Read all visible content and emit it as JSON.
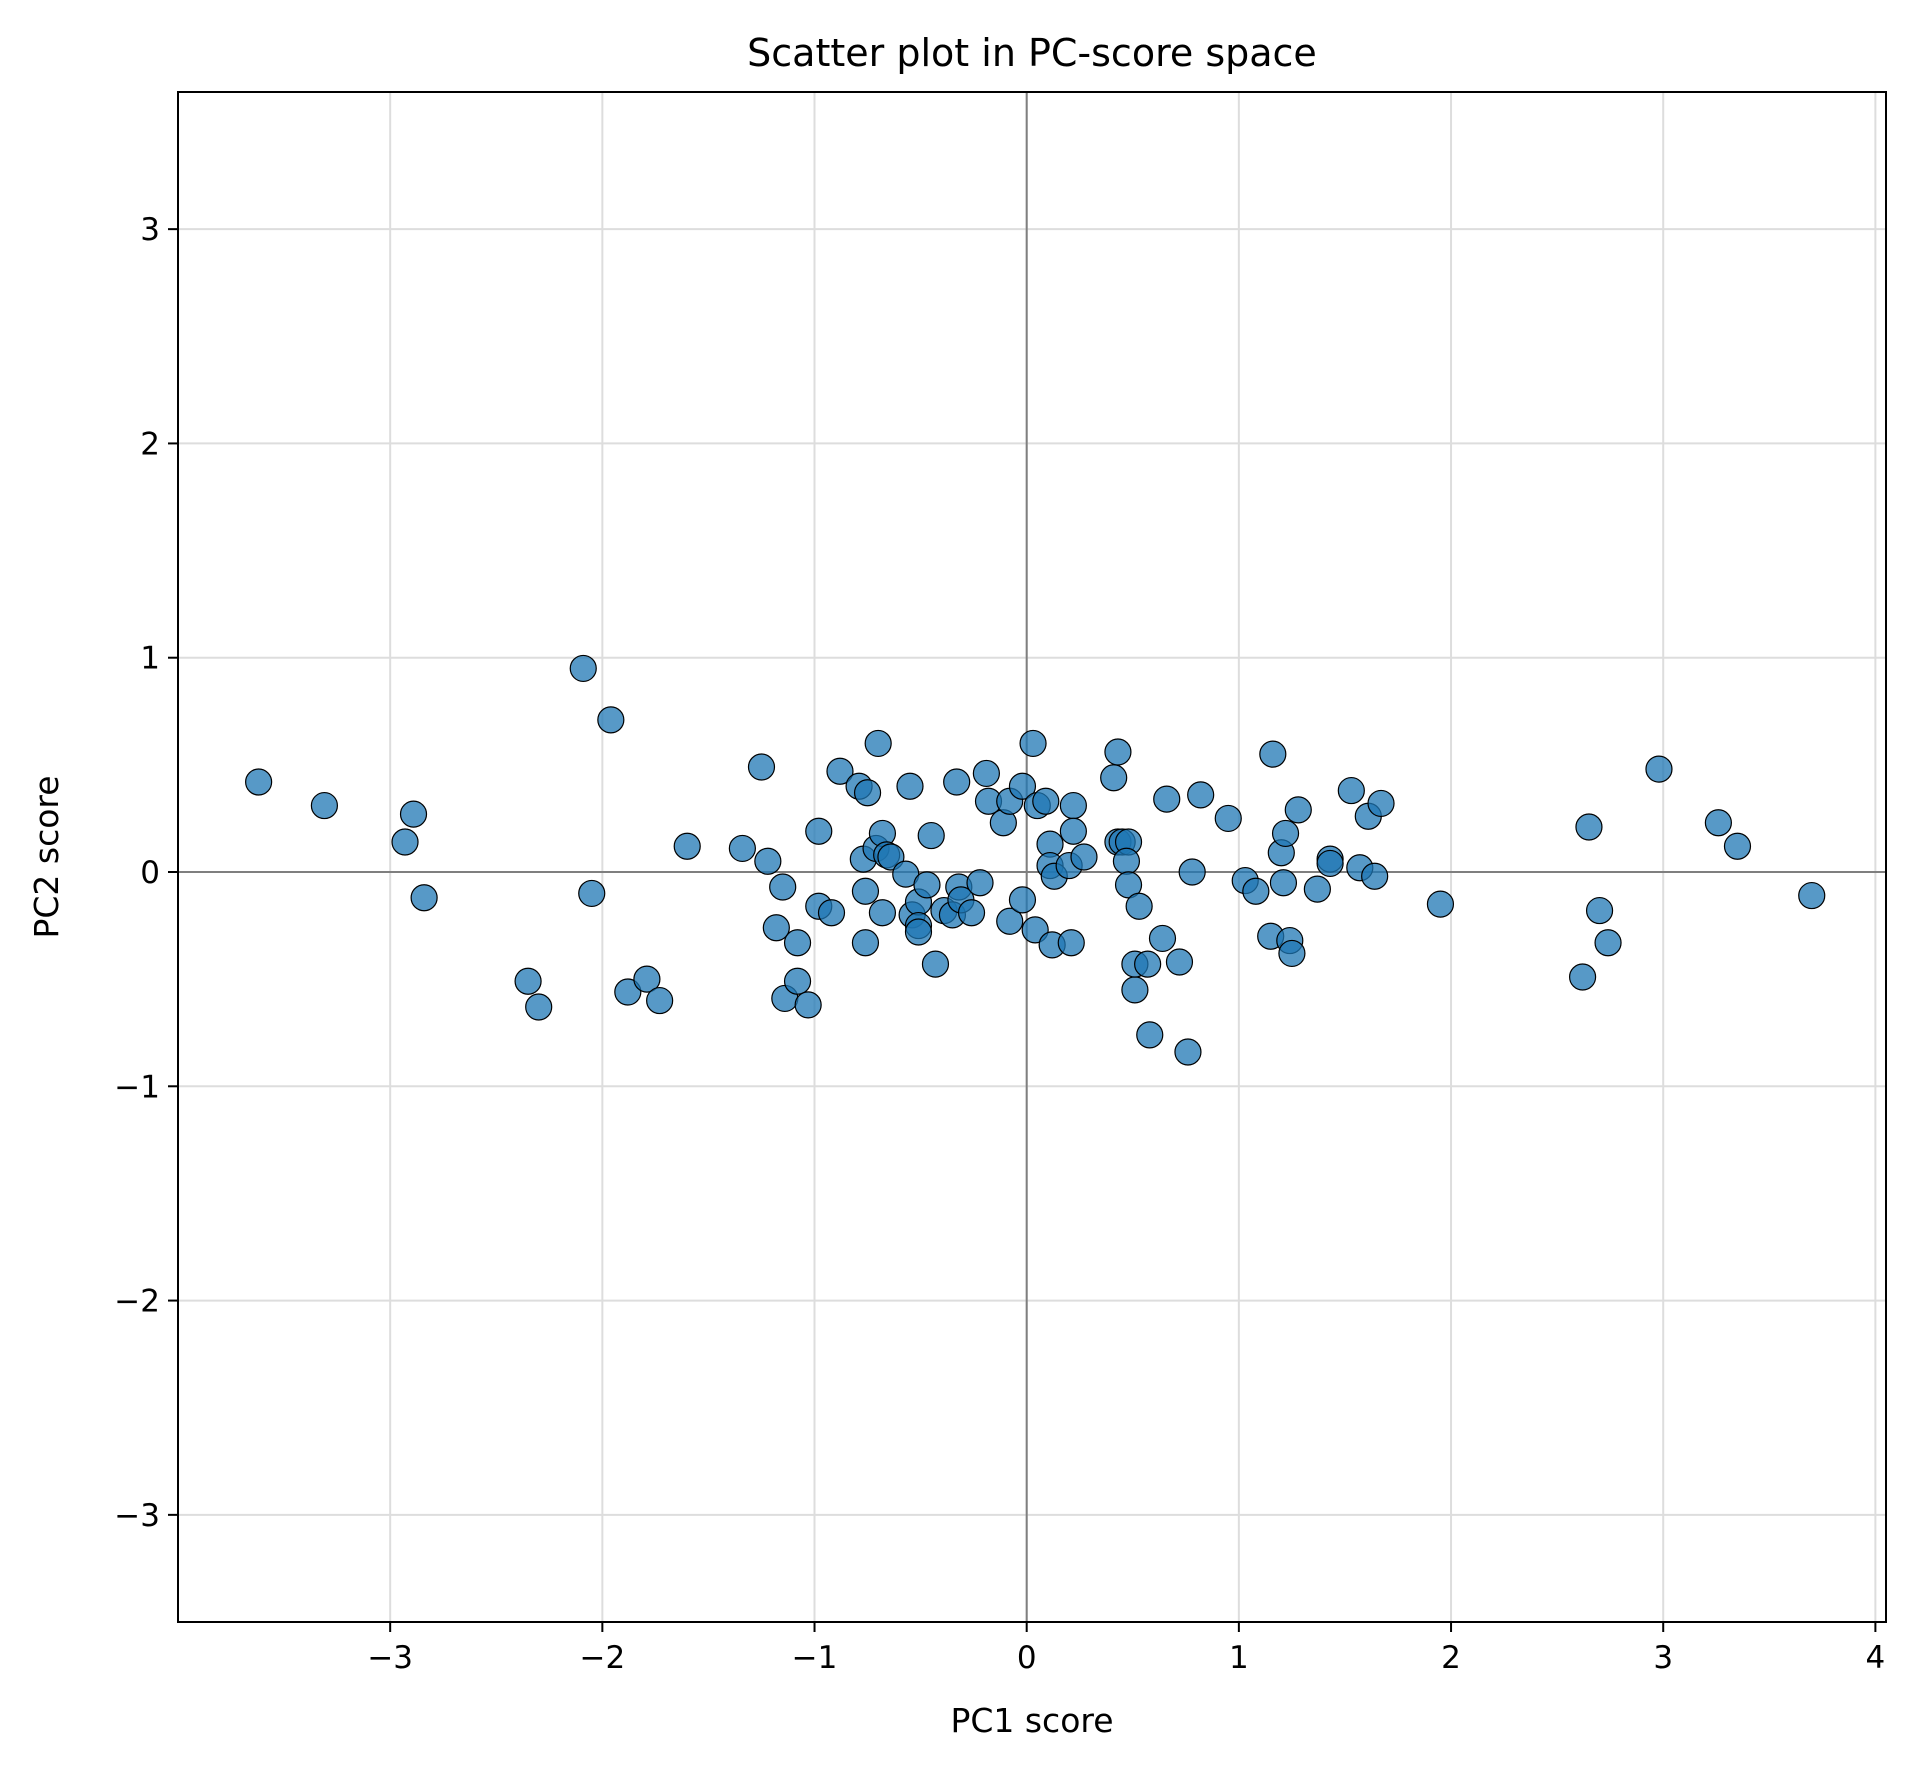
{
  "chart_data": {
    "type": "scatter",
    "title": "Scatter plot in PC-score space",
    "xlabel": "PC1 score",
    "ylabel": "PC2 score",
    "xlim": [
      -4.0,
      4.05
    ],
    "ylim": [
      -3.5,
      3.64
    ],
    "xticks": [
      -3,
      -2,
      -1,
      0,
      1,
      2,
      3,
      4
    ],
    "yticks": [
      -3,
      -2,
      -1,
      0,
      1,
      2,
      3
    ],
    "xtick_labels": [
      "−3",
      "−2",
      "−1",
      "0",
      "1",
      "2",
      "3",
      "4"
    ],
    "ytick_labels": [
      "−3",
      "−2",
      "−1",
      "0",
      "1",
      "2",
      "3"
    ],
    "grid": true,
    "zero_lines": true,
    "marker_color": "#1f77b4",
    "marker_edge_color": "#000000",
    "points": [
      [
        -3.62,
        0.42
      ],
      [
        -3.31,
        0.31
      ],
      [
        -2.89,
        0.27
      ],
      [
        -2.93,
        0.14
      ],
      [
        -2.84,
        -0.12
      ],
      [
        -2.35,
        -0.51
      ],
      [
        -2.3,
        -0.63
      ],
      [
        -2.09,
        0.95
      ],
      [
        -1.96,
        0.71
      ],
      [
        -2.05,
        -0.1
      ],
      [
        -1.88,
        -0.56
      ],
      [
        -1.79,
        -0.5
      ],
      [
        -1.73,
        -0.6
      ],
      [
        -1.6,
        0.12
      ],
      [
        -1.34,
        0.11
      ],
      [
        -1.25,
        0.49
      ],
      [
        -1.22,
        0.05
      ],
      [
        -1.18,
        -0.26
      ],
      [
        -1.15,
        -0.07
      ],
      [
        -1.14,
        -0.59
      ],
      [
        -1.08,
        -0.51
      ],
      [
        -1.08,
        -0.33
      ],
      [
        -1.03,
        -0.62
      ],
      [
        -0.98,
        0.19
      ],
      [
        -0.98,
        -0.16
      ],
      [
        -0.92,
        -0.19
      ],
      [
        -0.88,
        0.47
      ],
      [
        -0.79,
        0.4
      ],
      [
        -0.77,
        0.06
      ],
      [
        -0.75,
        0.37
      ],
      [
        -0.76,
        -0.09
      ],
      [
        -0.76,
        -0.33
      ],
      [
        -0.7,
        0.6
      ],
      [
        -0.71,
        0.11
      ],
      [
        -0.68,
        0.18
      ],
      [
        -0.68,
        -0.19
      ],
      [
        -0.66,
        0.08
      ],
      [
        -0.64,
        0.07
      ],
      [
        -0.57,
        -0.01
      ],
      [
        -0.55,
        0.4
      ],
      [
        -0.54,
        -0.2
      ],
      [
        -0.51,
        -0.14
      ],
      [
        -0.51,
        -0.25
      ],
      [
        -0.51,
        -0.28
      ],
      [
        -0.47,
        -0.06
      ],
      [
        -0.45,
        0.17
      ],
      [
        -0.43,
        -0.43
      ],
      [
        -0.39,
        -0.18
      ],
      [
        -0.35,
        -0.2
      ],
      [
        -0.33,
        0.42
      ],
      [
        -0.32,
        -0.07
      ],
      [
        -0.31,
        -0.13
      ],
      [
        -0.26,
        -0.19
      ],
      [
        -0.22,
        -0.05
      ],
      [
        -0.19,
        0.46
      ],
      [
        -0.18,
        0.33
      ],
      [
        -0.11,
        0.23
      ],
      [
        -0.08,
        0.33
      ],
      [
        -0.08,
        -0.23
      ],
      [
        -0.02,
        0.4
      ],
      [
        -0.02,
        -0.13
      ],
      [
        0.03,
        0.6
      ],
      [
        0.04,
        -0.27
      ],
      [
        0.05,
        0.31
      ],
      [
        0.09,
        0.33
      ],
      [
        0.11,
        0.13
      ],
      [
        0.11,
        0.03
      ],
      [
        0.13,
        -0.02
      ],
      [
        0.12,
        -0.34
      ],
      [
        0.2,
        0.03
      ],
      [
        0.21,
        -0.33
      ],
      [
        0.22,
        0.31
      ],
      [
        0.22,
        0.19
      ],
      [
        0.27,
        0.07
      ],
      [
        0.41,
        0.44
      ],
      [
        0.43,
        0.56
      ],
      [
        0.43,
        0.14
      ],
      [
        0.45,
        0.14
      ],
      [
        0.48,
        0.14
      ],
      [
        0.47,
        0.05
      ],
      [
        0.48,
        -0.06
      ],
      [
        0.51,
        -0.55
      ],
      [
        0.51,
        -0.43
      ],
      [
        0.53,
        -0.16
      ],
      [
        0.57,
        -0.43
      ],
      [
        0.58,
        -0.76
      ],
      [
        0.64,
        -0.31
      ],
      [
        0.66,
        0.34
      ],
      [
        0.72,
        -0.42
      ],
      [
        0.76,
        -0.84
      ],
      [
        0.78,
        0.0
      ],
      [
        0.82,
        0.36
      ],
      [
        0.95,
        0.25
      ],
      [
        1.03,
        -0.04
      ],
      [
        1.08,
        -0.09
      ],
      [
        1.16,
        0.55
      ],
      [
        1.15,
        -0.3
      ],
      [
        1.2,
        0.09
      ],
      [
        1.21,
        -0.05
      ],
      [
        1.22,
        0.18
      ],
      [
        1.24,
        -0.32
      ],
      [
        1.25,
        -0.38
      ],
      [
        1.28,
        0.29
      ],
      [
        1.37,
        -0.08
      ],
      [
        1.43,
        0.06
      ],
      [
        1.43,
        0.04
      ],
      [
        1.53,
        0.38
      ],
      [
        1.57,
        0.02
      ],
      [
        1.61,
        0.26
      ],
      [
        1.64,
        -0.02
      ],
      [
        1.67,
        0.32
      ],
      [
        1.95,
        -0.15
      ],
      [
        2.62,
        -0.49
      ],
      [
        2.65,
        0.21
      ],
      [
        2.7,
        -0.18
      ],
      [
        2.74,
        -0.33
      ],
      [
        2.98,
        0.48
      ],
      [
        3.26,
        0.23
      ],
      [
        3.35,
        0.12
      ],
      [
        3.7,
        -0.11
      ]
    ]
  }
}
